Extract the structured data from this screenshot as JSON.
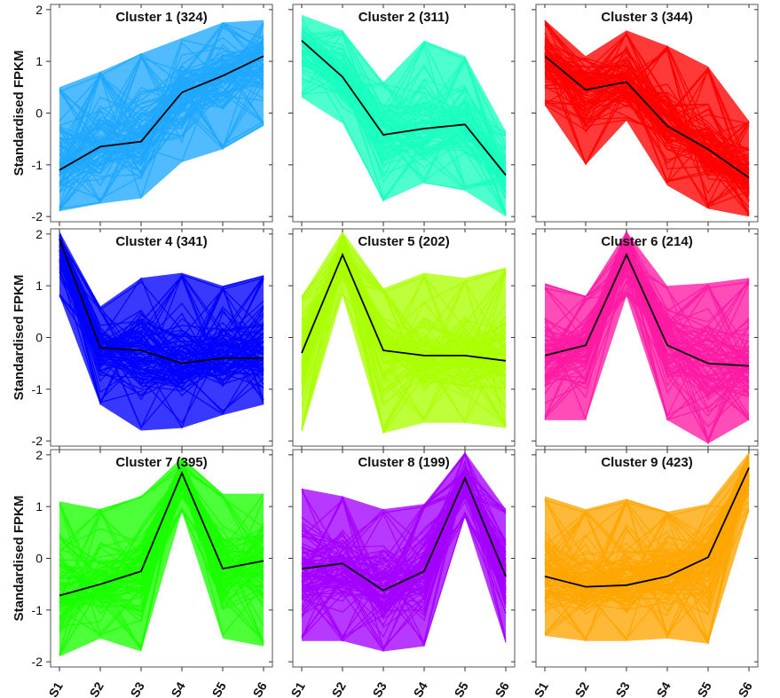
{
  "chart_data": {
    "type": "line",
    "ylabel": "Standardised FPKM",
    "x": [
      "S1",
      "S2",
      "S3",
      "S4",
      "S5",
      "S6"
    ],
    "ylim": [
      -2.1,
      2.1
    ],
    "yticks": [
      -2,
      -1,
      0,
      1,
      2
    ],
    "grid": false,
    "panels": [
      {
        "title": "Cluster 1 (324)",
        "color": "#1fa8ff",
        "mean": [
          -1.1,
          -0.65,
          -0.55,
          0.4,
          0.72,
          1.1
        ],
        "min": [
          -1.9,
          -1.75,
          -1.65,
          -0.95,
          -0.7,
          -0.25
        ],
        "max": [
          0.5,
          0.8,
          1.15,
          1.45,
          1.75,
          1.8
        ],
        "line_count": 324
      },
      {
        "title": "Cluster 2 (311)",
        "color": "#19ffbf",
        "mean": [
          1.4,
          0.7,
          -0.42,
          -0.3,
          -0.22,
          -1.2
        ],
        "min": [
          0.3,
          -0.2,
          -1.7,
          -1.35,
          -1.5,
          -2.0
        ],
        "max": [
          1.9,
          1.6,
          0.6,
          1.4,
          1.1,
          -0.35
        ],
        "line_count": 311
      },
      {
        "title": "Cluster 3 (344)",
        "color": "#ff0000",
        "mean": [
          1.1,
          0.45,
          0.6,
          -0.25,
          -0.7,
          -1.25
        ],
        "min": [
          0.15,
          -1.0,
          -0.15,
          -1.4,
          -1.85,
          -2.0
        ],
        "max": [
          1.8,
          1.1,
          1.6,
          1.3,
          0.9,
          -0.15
        ],
        "line_count": 344
      },
      {
        "title": "Cluster 4 (341)",
        "color": "#0000ff",
        "mean": [
          1.9,
          -0.2,
          -0.25,
          -0.5,
          -0.4,
          -0.4
        ],
        "min": [
          0.8,
          -1.3,
          -1.8,
          -1.75,
          -1.5,
          -1.3
        ],
        "max": [
          2.05,
          0.6,
          1.15,
          1.25,
          1.0,
          1.2
        ],
        "line_count": 341
      },
      {
        "title": "Cluster 5 (202)",
        "color": "#aaff00",
        "mean": [
          -0.3,
          1.6,
          -0.25,
          -0.35,
          -0.35,
          -0.45
        ],
        "min": [
          -1.85,
          0.8,
          -1.85,
          -1.65,
          -1.65,
          -1.75
        ],
        "max": [
          0.8,
          2.05,
          0.95,
          1.25,
          1.15,
          1.35
        ],
        "line_count": 202
      },
      {
        "title": "Cluster 6 (214)",
        "color": "#ff1aa3",
        "mean": [
          -0.35,
          -0.15,
          1.6,
          -0.15,
          -0.5,
          -0.55
        ],
        "min": [
          -1.6,
          -1.6,
          0.8,
          -1.6,
          -2.05,
          -1.6
        ],
        "max": [
          1.05,
          0.8,
          2.05,
          1.0,
          1.05,
          1.15
        ],
        "line_count": 214
      },
      {
        "title": "Cluster 7 (395)",
        "color": "#1aff00",
        "mean": [
          -0.72,
          -0.5,
          -0.25,
          1.65,
          -0.2,
          -0.05
        ],
        "min": [
          -1.9,
          -1.55,
          -1.8,
          0.9,
          -1.55,
          -1.7
        ],
        "max": [
          1.1,
          0.95,
          1.2,
          1.95,
          1.25,
          1.25
        ],
        "line_count": 395
      },
      {
        "title": "Cluster 8 (199)",
        "color": "#a300ff",
        "mean": [
          -0.2,
          -0.1,
          -0.62,
          -0.25,
          1.55,
          -0.35
        ],
        "min": [
          -1.6,
          -1.6,
          -1.8,
          -1.7,
          0.8,
          -1.65
        ],
        "max": [
          1.35,
          1.2,
          0.95,
          1.05,
          2.05,
          0.95
        ],
        "line_count": 199
      },
      {
        "title": "Cluster 9 (423)",
        "color": "#ffa500",
        "mean": [
          -0.35,
          -0.55,
          -0.52,
          -0.35,
          0.02,
          1.75
        ],
        "min": [
          -1.5,
          -1.6,
          -1.6,
          -1.55,
          -1.65,
          0.9
        ],
        "max": [
          1.2,
          0.95,
          1.15,
          0.9,
          1.05,
          2.05
        ],
        "line_count": 423
      }
    ],
    "mean_line_color": "#000000"
  }
}
